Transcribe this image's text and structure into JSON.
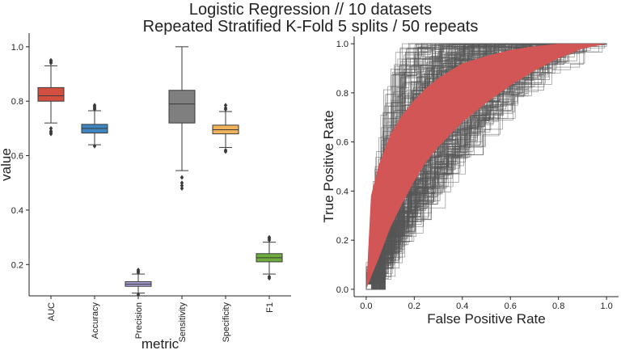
{
  "chart_data": [
    {
      "type": "box",
      "title_lines": [
        "Logistic Regression // 10 datasets",
        "Repeated Stratified K-Fold 5 splits / 50 repeats"
      ],
      "xlabel": "metric",
      "ylabel": "value",
      "ylim": [
        0.085,
        1.05
      ],
      "yticks": [
        0.2,
        0.4,
        0.6,
        0.8,
        1.0
      ],
      "ytick_labels": [
        "0.2",
        "0.4",
        "0.6",
        "0.8",
        "1.0"
      ],
      "categories": [
        "AUC",
        "Accuracy",
        "Precision",
        "Sensitivity",
        "Specificity",
        "F1"
      ],
      "colors": [
        "#d24e3e",
        "#3f86c0",
        "#a79bd3",
        "#7f7f7f",
        "#f0b25b",
        "#6fae3e"
      ],
      "boxes": [
        {
          "whisker_low": 0.72,
          "q1": 0.8,
          "median": 0.82,
          "q3": 0.85,
          "whisker_high": 0.93,
          "outliers": [
            0.68,
            0.685,
            0.69,
            0.7,
            0.94,
            0.945,
            0.95
          ]
        },
        {
          "whisker_low": 0.64,
          "q1": 0.683,
          "median": 0.7,
          "q3": 0.715,
          "whisker_high": 0.765,
          "outliers": [
            0.635,
            0.77,
            0.775,
            0.78,
            0.785
          ]
        },
        {
          "whisker_low": 0.095,
          "q1": 0.12,
          "median": 0.128,
          "q3": 0.137,
          "whisker_high": 0.165,
          "outliers": [
            0.09,
            0.17,
            0.175,
            0.18
          ]
        },
        {
          "whisker_low": 0.545,
          "q1": 0.72,
          "median": 0.79,
          "q3": 0.84,
          "whisker_high": 1.0,
          "outliers": [
            0.48,
            0.49,
            0.5,
            0.52
          ]
        },
        {
          "whisker_low": 0.63,
          "q1": 0.68,
          "median": 0.695,
          "q3": 0.712,
          "whisker_high": 0.762,
          "outliers": [
            0.615,
            0.62,
            0.77,
            0.775,
            0.785
          ]
        },
        {
          "whisker_low": 0.165,
          "q1": 0.21,
          "median": 0.225,
          "q3": 0.24,
          "whisker_high": 0.282,
          "outliers": [
            0.15,
            0.155,
            0.29,
            0.295,
            0.3
          ]
        }
      ]
    },
    {
      "type": "line",
      "xlabel": "False Positive Rate",
      "ylabel": "True Positive Rate",
      "xlim": [
        -0.05,
        1.05
      ],
      "ylim": [
        -0.03,
        1.03
      ],
      "xticks": [
        0.0,
        0.2,
        0.4,
        0.6,
        0.8,
        1.0
      ],
      "xtick_labels": [
        "0.0",
        "0.2",
        "0.4",
        "0.6",
        "0.8",
        "1.0"
      ],
      "yticks": [
        0.0,
        0.2,
        0.4,
        0.6,
        0.8,
        1.0
      ],
      "ytick_labels": [
        "0.0",
        "0.2",
        "0.4",
        "0.6",
        "0.8",
        "1.0"
      ],
      "band_color": "#d35656",
      "curve_color": "#555555",
      "band_fpr": [
        0.0,
        0.02,
        0.05,
        0.1,
        0.15,
        0.2,
        0.25,
        0.3,
        0.35,
        0.4,
        0.5,
        0.6,
        0.7,
        0.8,
        0.9,
        1.0
      ],
      "band_upper": [
        0.0,
        0.38,
        0.5,
        0.63,
        0.71,
        0.77,
        0.82,
        0.86,
        0.89,
        0.92,
        0.95,
        0.975,
        0.99,
        1.0,
        1.0,
        1.0
      ],
      "band_lower": [
        0.0,
        0.05,
        0.12,
        0.25,
        0.35,
        0.44,
        0.52,
        0.58,
        0.63,
        0.68,
        0.76,
        0.83,
        0.89,
        0.94,
        0.98,
        1.0
      ],
      "n_curves": 300
    }
  ]
}
